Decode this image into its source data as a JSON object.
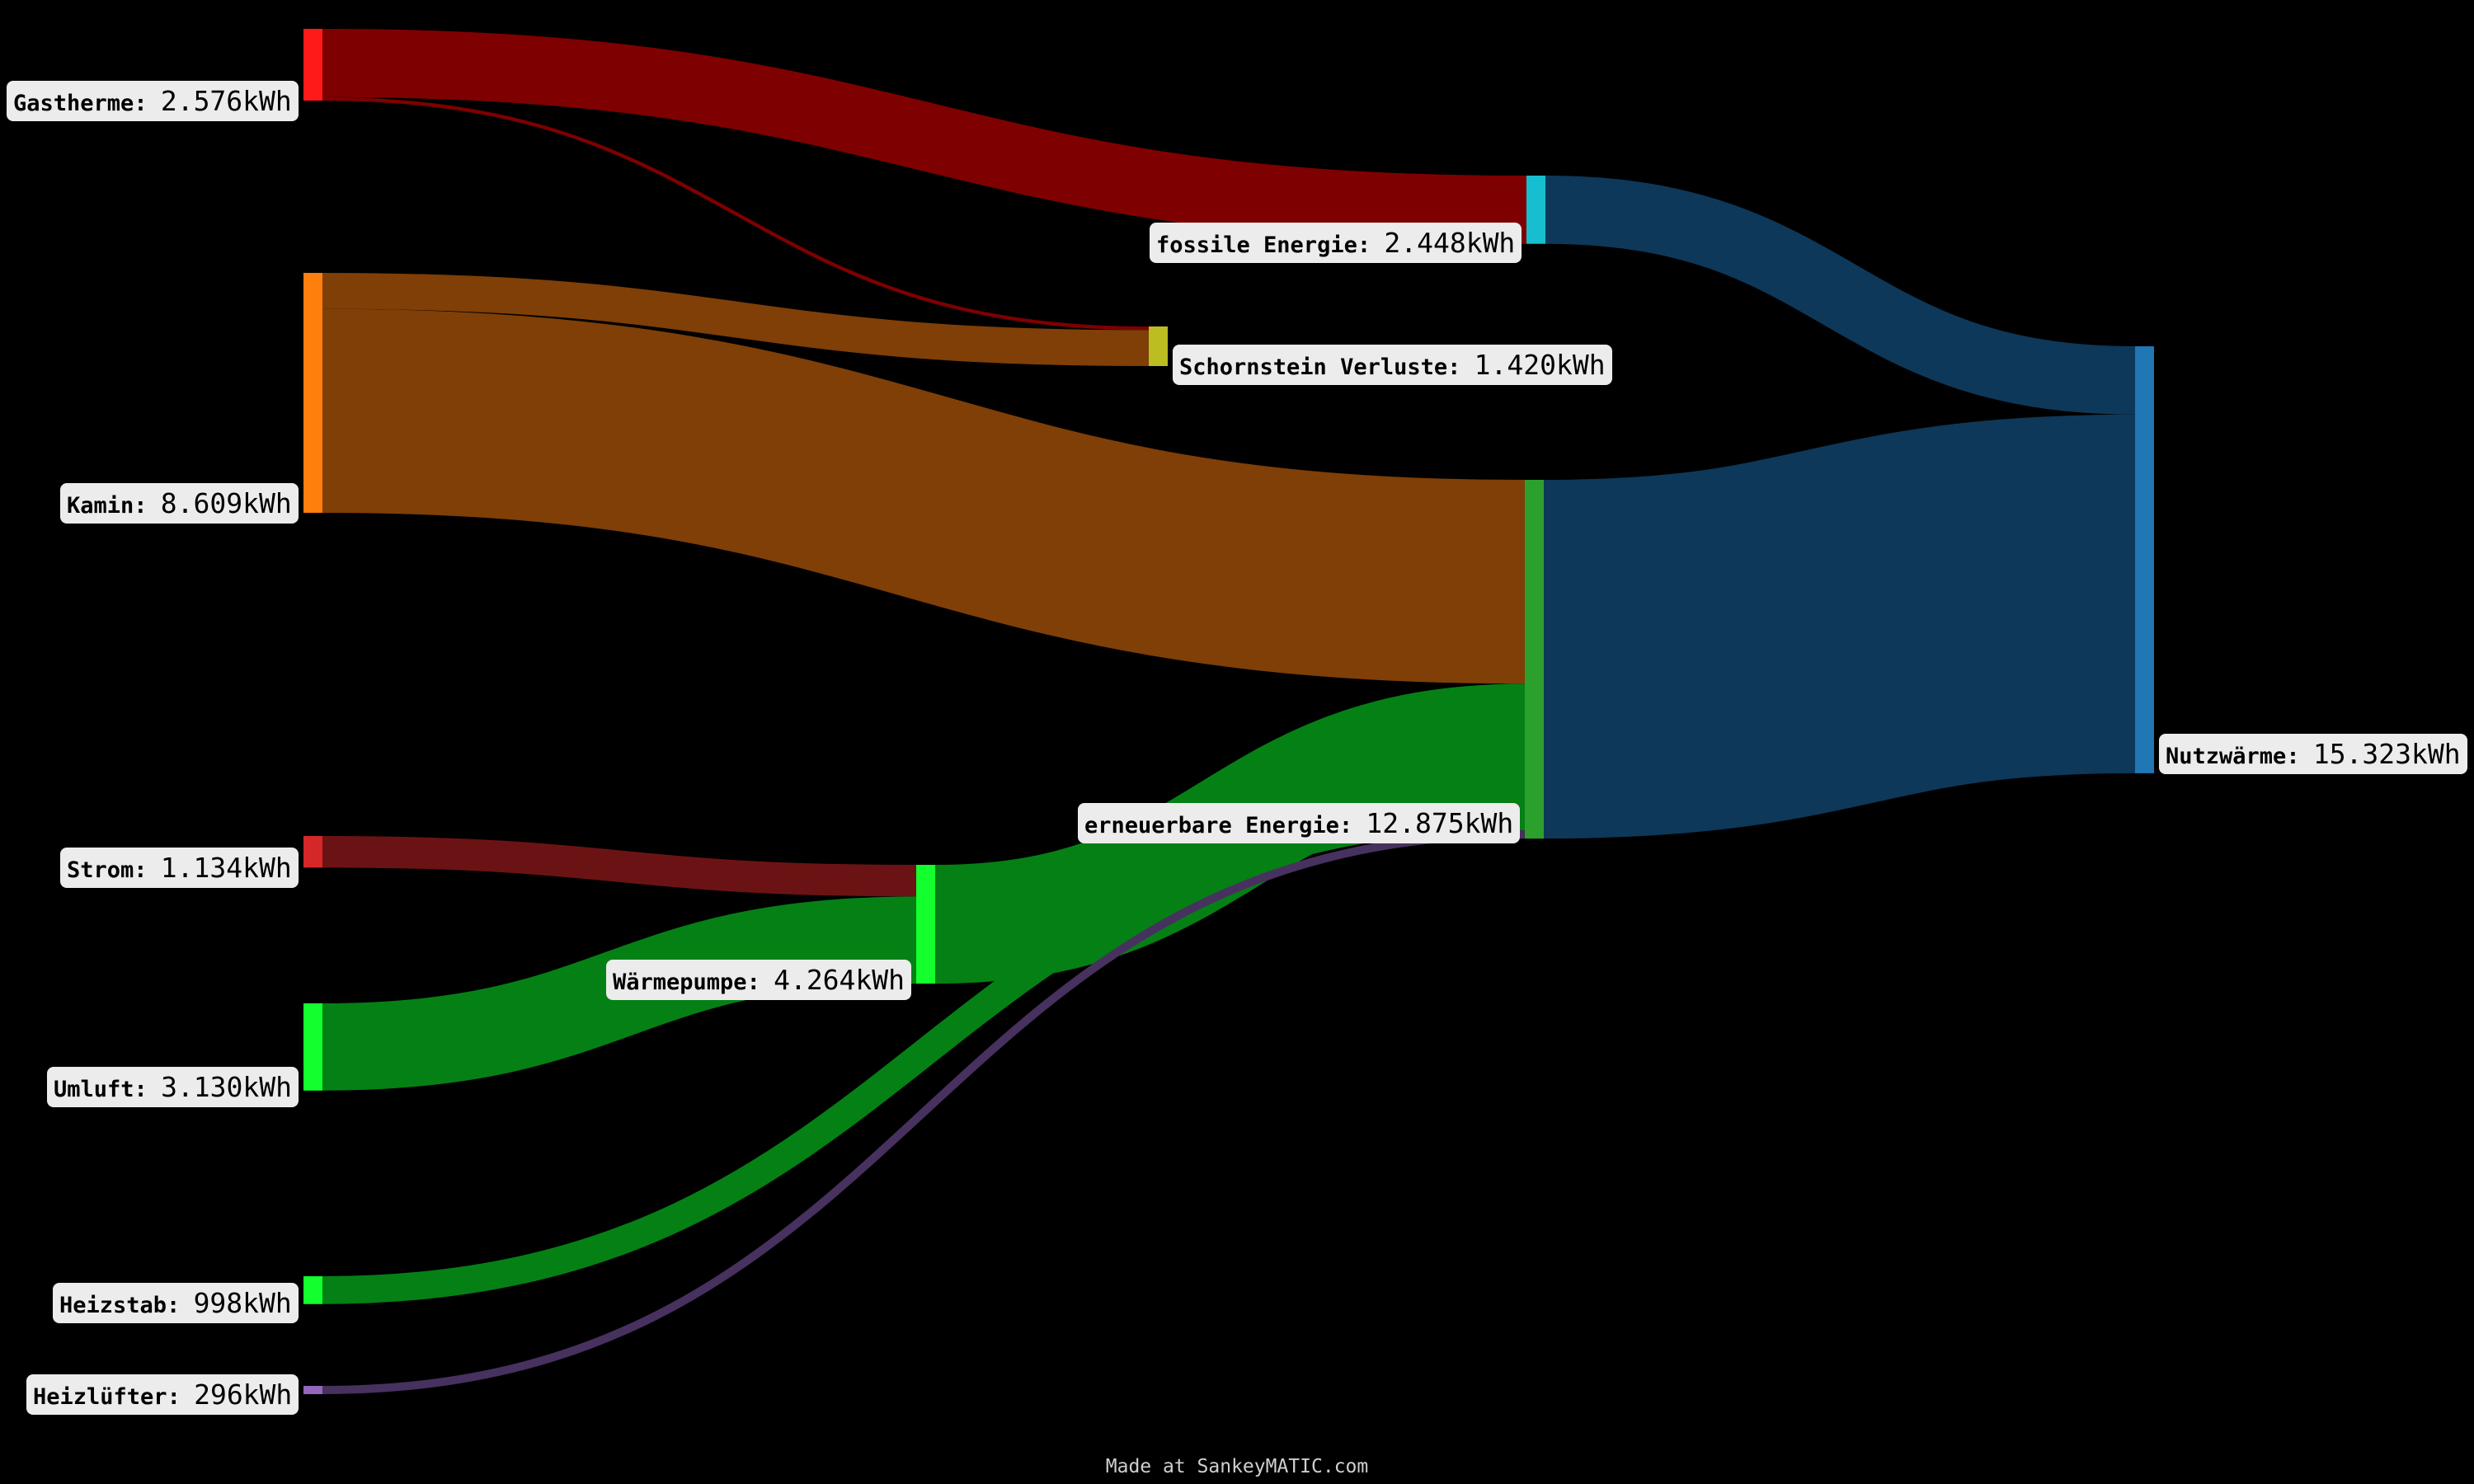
{
  "chart_data": {
    "type": "sankey",
    "unit": "kWh",
    "nodes": [
      {
        "id": "gas",
        "name": "Gastherme",
        "value_label": "2.576kWh",
        "value": 2576,
        "color": "#ff1a1a"
      },
      {
        "id": "kamin",
        "name": "Kamin",
        "value_label": "8.609kWh",
        "value": 8609,
        "color": "#ff7f0e"
      },
      {
        "id": "strom",
        "name": "Strom",
        "value_label": "1.134kWh",
        "value": 1134,
        "color": "#d62728"
      },
      {
        "id": "umluft",
        "name": "Umluft",
        "value_label": "3.130kWh",
        "value": 3130,
        "color": "#14ff2e"
      },
      {
        "id": "heizstab",
        "name": "Heizstab",
        "value_label": "998kWh",
        "value": 998,
        "color": "#14ff2e"
      },
      {
        "id": "luefter",
        "name": "Heizlüfter",
        "value_label": "296kWh",
        "value": 296,
        "color": "#9467bd"
      },
      {
        "id": "wp",
        "name": "Wärmepumpe",
        "value_label": "4.264kWh",
        "value": 4264,
        "color": "#14ff2e"
      },
      {
        "id": "schorn",
        "name": "Schornstein Verluste",
        "value_label": "1.420kWh",
        "value": 1420,
        "color": "#bcbd22"
      },
      {
        "id": "fossil",
        "name": "fossile Energie",
        "value_label": "2.448kWh",
        "value": 2448,
        "color": "#17becf"
      },
      {
        "id": "erneuer",
        "name": "erneuerbare Energie",
        "value_label": "12.875kWh",
        "value": 12875,
        "color": "#2ca02c"
      },
      {
        "id": "nutz",
        "name": "Nutzwärme",
        "value_label": "15.323kWh",
        "value": 15323,
        "color": "#1f77b4"
      }
    ],
    "links": [
      {
        "source": "gas",
        "target": "fossil",
        "value": 2448,
        "color": "#7f0000"
      },
      {
        "source": "gas",
        "target": "schorn",
        "value": 128,
        "color": "#7f0000"
      },
      {
        "source": "kamin",
        "target": "schorn",
        "value": 1292,
        "color": "#7f3f07"
      },
      {
        "source": "kamin",
        "target": "erneuer",
        "value": 7317,
        "color": "#7f3f07"
      },
      {
        "source": "strom",
        "target": "wp",
        "value": 1134,
        "color": "#6b1314"
      },
      {
        "source": "umluft",
        "target": "wp",
        "value": 3130,
        "color": "#058015"
      },
      {
        "source": "wp",
        "target": "erneuer",
        "value": 4264,
        "color": "#058015"
      },
      {
        "source": "heizstab",
        "target": "erneuer",
        "value": 998,
        "color": "#058015"
      },
      {
        "source": "luefter",
        "target": "erneuer",
        "value": 296,
        "color": "#47315e"
      },
      {
        "source": "fossil",
        "target": "nutz",
        "value": 2448,
        "color": "#0d3859"
      },
      {
        "source": "erneuer",
        "target": "nutz",
        "value": 12875,
        "color": "#0d3859"
      }
    ]
  },
  "credit": "Made at SankeyMATIC.com"
}
